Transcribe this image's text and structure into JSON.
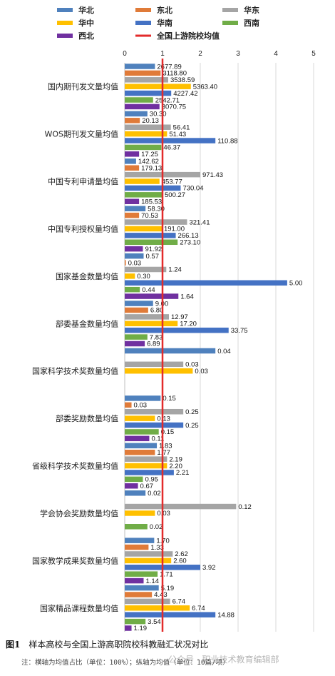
{
  "chart_data": {
    "type": "bar",
    "orientation": "horizontal",
    "categories": [
      "国内期刊发文量均值",
      "WOS期刊发文量均值",
      "中国专利申请量均值",
      "中国专利授权量均值",
      "国家基金数量均值",
      "部委基金数量均值",
      "国家科学技术奖数量均值",
      "部委奖励数量均值",
      "省级科学技术奖数量均值",
      "学会协会奖励数量均值",
      "国家教学成果奖数量均值",
      "国家精品课程数量均值"
    ],
    "series": [
      {
        "name": "华北",
        "color": "#4f81bd",
        "values": [
          0.8,
          0.6,
          0.3,
          0.55,
          0.5,
          0.75,
          2.4,
          0.95,
          0.85,
          0.55,
          0.78,
          0.9
        ],
        "labels": [
          "2677.89",
          "30.30",
          "142.62",
          "58.30",
          "0.57",
          "9.00",
          "0.04",
          "0.15",
          "1.83",
          "0.02",
          "1.70",
          "5.19"
        ]
      },
      {
        "name": "东北",
        "color": "#e07b39",
        "values": [
          0.95,
          0.4,
          0.38,
          0.38,
          0.03,
          0.62,
          null,
          0.18,
          0.8,
          null,
          0.63,
          0.72
        ],
        "labels": [
          "3118.80",
          "20.13",
          "179.13",
          "70.53",
          "0.03",
          "6.80",
          null,
          "0.03",
          "1.77",
          null,
          "1.33",
          "4.43"
        ]
      },
      {
        "name": "华东",
        "color": "#a5a5a5",
        "values": [
          1.15,
          1.22,
          2.0,
          1.65,
          1.1,
          1.17,
          1.55,
          1.55,
          1.12,
          2.95,
          1.27,
          1.2
        ],
        "labels": [
          "3538.59",
          "56.41",
          "971.43",
          "321.41",
          "1.24",
          "12.97",
          "0.03",
          "0.25",
          "2.19",
          "0.12",
          "2.62",
          "6.74"
        ]
      },
      {
        "name": "华中",
        "color": "#ffc000",
        "values": [
          1.75,
          1.12,
          0.92,
          0.98,
          0.27,
          1.4,
          1.8,
          0.8,
          1.12,
          0.8,
          1.23,
          1.72
        ],
        "labels": [
          "5363.40",
          "51.43",
          "453.77",
          "191.00",
          "0.30",
          "17.20",
          "0.03",
          "0.13",
          "2.20",
          "0.03",
          "2.60",
          "6.74"
        ]
      },
      {
        "name": "华南",
        "color": "#4472c4",
        "values": [
          1.23,
          2.4,
          1.48,
          1.35,
          4.3,
          2.75,
          null,
          1.55,
          1.3,
          null,
          2.0,
          2.4
        ],
        "labels": [
          "4227.42",
          "110.88",
          "730.04",
          "266.13",
          "5.00",
          "33.75",
          null,
          "0.25",
          "2.21",
          null,
          "3.92",
          "14.88"
        ]
      },
      {
        "name": "西南",
        "color": "#70ad47",
        "values": [
          0.75,
          0.97,
          1.0,
          1.4,
          0.4,
          0.6,
          null,
          0.9,
          0.48,
          0.6,
          0.87,
          0.55
        ],
        "labels": [
          "2542.71",
          "46.37",
          "500.27",
          "273.10",
          "0.44",
          "7.83",
          null,
          "0.15",
          "0.95",
          "0.02",
          "1.71",
          "3.54"
        ]
      },
      {
        "name": "西北",
        "color": "#7030a0",
        "values": [
          0.92,
          0.38,
          0.38,
          0.48,
          1.42,
          0.53,
          null,
          0.65,
          0.35,
          null,
          0.5,
          0.18
        ],
        "labels": [
          "3070.75",
          "17.25",
          "185.53",
          "91.92",
          "1.64",
          "6.89",
          null,
          "0.11",
          "0.67",
          null,
          "1.14",
          "1.19"
        ]
      }
    ],
    "reference": {
      "name": "全国上游院校均值",
      "value": 1,
      "color": "#e32b2b"
    },
    "xlim": [
      0,
      5
    ],
    "xticks": [
      "0",
      "1",
      "2",
      "3",
      "4",
      "5"
    ],
    "grid": true,
    "legend_position": "top"
  },
  "caption": {
    "figure": "图1",
    "title": "样本高校与全国上游高职院校科教融汇状况对比"
  },
  "note": "注：横轴为均值占比（单位：100%）；纵轴为均值（单位：10篇/项）",
  "watermark": "公众号 · 职业技术教育编辑部"
}
